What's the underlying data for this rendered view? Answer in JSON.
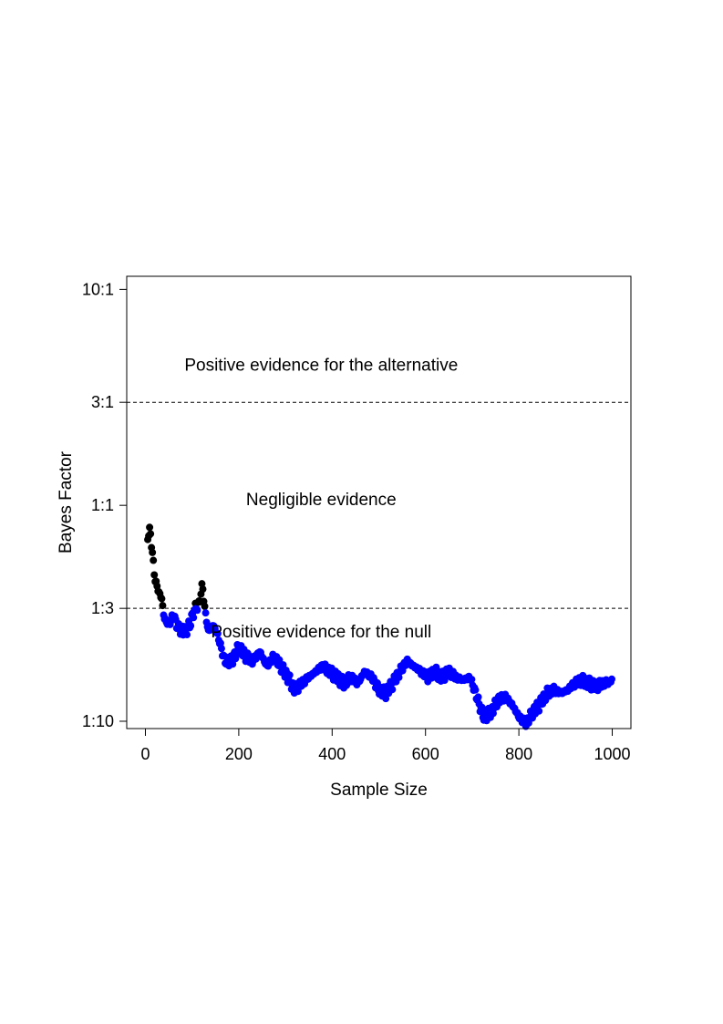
{
  "chart_data": {
    "type": "scatter",
    "xlabel": "Sample Size",
    "ylabel": "Bayes Factor",
    "x_ticks": [
      0,
      200,
      400,
      600,
      800,
      1000
    ],
    "y_ticks": [
      {
        "value": 0.1,
        "label": "1:10"
      },
      {
        "value": 0.3333,
        "label": "1:3"
      },
      {
        "value": 1,
        "label": "1:1"
      },
      {
        "value": 3,
        "label": "3:1"
      },
      {
        "value": 10,
        "label": "10:1"
      }
    ],
    "y_scale": "log",
    "xlim": [
      -40,
      1040
    ],
    "ylim": [
      0.0925,
      11.5
    ],
    "reference_lines": [
      3,
      0.3333
    ],
    "annotations": [
      {
        "text": "Positive evidence for the alternative",
        "x": 650,
        "y": 4.2
      },
      {
        "text": "Negligible evidence",
        "x": 650,
        "y": 1.0
      },
      {
        "text": "Positive evidence for the null",
        "x": 650,
        "y": 0.245
      }
    ],
    "colors": {
      "above_null_threshold": "#000000",
      "below_null_threshold": "#0000ff"
    },
    "series_points": [
      [
        5,
        0.72
      ],
      [
        10,
        0.77
      ],
      [
        15,
        0.6
      ],
      [
        20,
        0.46
      ],
      [
        25,
        0.42
      ],
      [
        30,
        0.39
      ],
      [
        35,
        0.37
      ],
      [
        40,
        0.3
      ],
      [
        50,
        0.28
      ],
      [
        60,
        0.31
      ],
      [
        70,
        0.27
      ],
      [
        85,
        0.26
      ],
      [
        95,
        0.28
      ],
      [
        105,
        0.33
      ],
      [
        115,
        0.35
      ],
      [
        122,
        0.43
      ],
      [
        128,
        0.32
      ],
      [
        135,
        0.26
      ],
      [
        145,
        0.28
      ],
      [
        155,
        0.25
      ],
      [
        170,
        0.19
      ],
      [
        185,
        0.19
      ],
      [
        200,
        0.22
      ],
      [
        215,
        0.2
      ],
      [
        230,
        0.19
      ],
      [
        245,
        0.21
      ],
      [
        260,
        0.18
      ],
      [
        275,
        0.2
      ],
      [
        290,
        0.18
      ],
      [
        305,
        0.16
      ],
      [
        320,
        0.14
      ],
      [
        335,
        0.15
      ],
      [
        350,
        0.16
      ],
      [
        365,
        0.17
      ],
      [
        380,
        0.18
      ],
      [
        395,
        0.17
      ],
      [
        410,
        0.16
      ],
      [
        425,
        0.15
      ],
      [
        440,
        0.16
      ],
      [
        455,
        0.15
      ],
      [
        470,
        0.17
      ],
      [
        485,
        0.16
      ],
      [
        500,
        0.14
      ],
      [
        515,
        0.135
      ],
      [
        530,
        0.15
      ],
      [
        545,
        0.17
      ],
      [
        560,
        0.19
      ],
      [
        575,
        0.18
      ],
      [
        590,
        0.17
      ],
      [
        605,
        0.16
      ],
      [
        620,
        0.17
      ],
      [
        635,
        0.16
      ],
      [
        650,
        0.17
      ],
      [
        665,
        0.16
      ],
      [
        680,
        0.155
      ],
      [
        695,
        0.16
      ],
      [
        705,
        0.14
      ],
      [
        715,
        0.12
      ],
      [
        725,
        0.105
      ],
      [
        740,
        0.11
      ],
      [
        755,
        0.125
      ],
      [
        770,
        0.13
      ],
      [
        785,
        0.12
      ],
      [
        800,
        0.105
      ],
      [
        815,
        0.098
      ],
      [
        830,
        0.11
      ],
      [
        845,
        0.12
      ],
      [
        860,
        0.135
      ],
      [
        875,
        0.14
      ],
      [
        890,
        0.135
      ],
      [
        905,
        0.14
      ],
      [
        920,
        0.15
      ],
      [
        935,
        0.155
      ],
      [
        950,
        0.15
      ],
      [
        965,
        0.145
      ],
      [
        980,
        0.15
      ],
      [
        995,
        0.152
      ],
      [
        1000,
        0.158
      ]
    ]
  }
}
